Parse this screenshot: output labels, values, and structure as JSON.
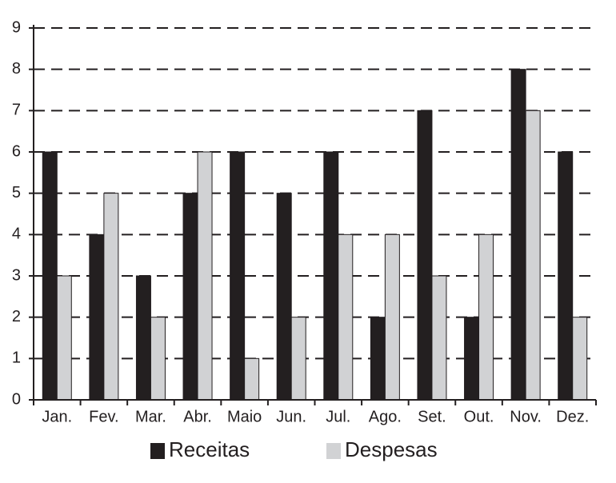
{
  "chart_data": {
    "type": "bar",
    "categories": [
      "Jan.",
      "Fev.",
      "Mar.",
      "Abr.",
      "Maio",
      "Jun.",
      "Jul.",
      "Ago.",
      "Set.",
      "Out.",
      "Nov.",
      "Dez."
    ],
    "series": [
      {
        "name": "Receitas",
        "color": "#231f20",
        "values": [
          6,
          4,
          3,
          5,
          6,
          5,
          6,
          2,
          7,
          2,
          8,
          6
        ]
      },
      {
        "name": "Despesas",
        "color": "#d1d2d4",
        "values": [
          3,
          5,
          2,
          6,
          1,
          2,
          4,
          4,
          3,
          4,
          7,
          2
        ]
      }
    ],
    "ylim": [
      0,
      9
    ],
    "yticks": [
      0,
      1,
      2,
      3,
      4,
      5,
      6,
      7,
      8,
      9
    ],
    "grid": true,
    "legend": "bottom"
  }
}
